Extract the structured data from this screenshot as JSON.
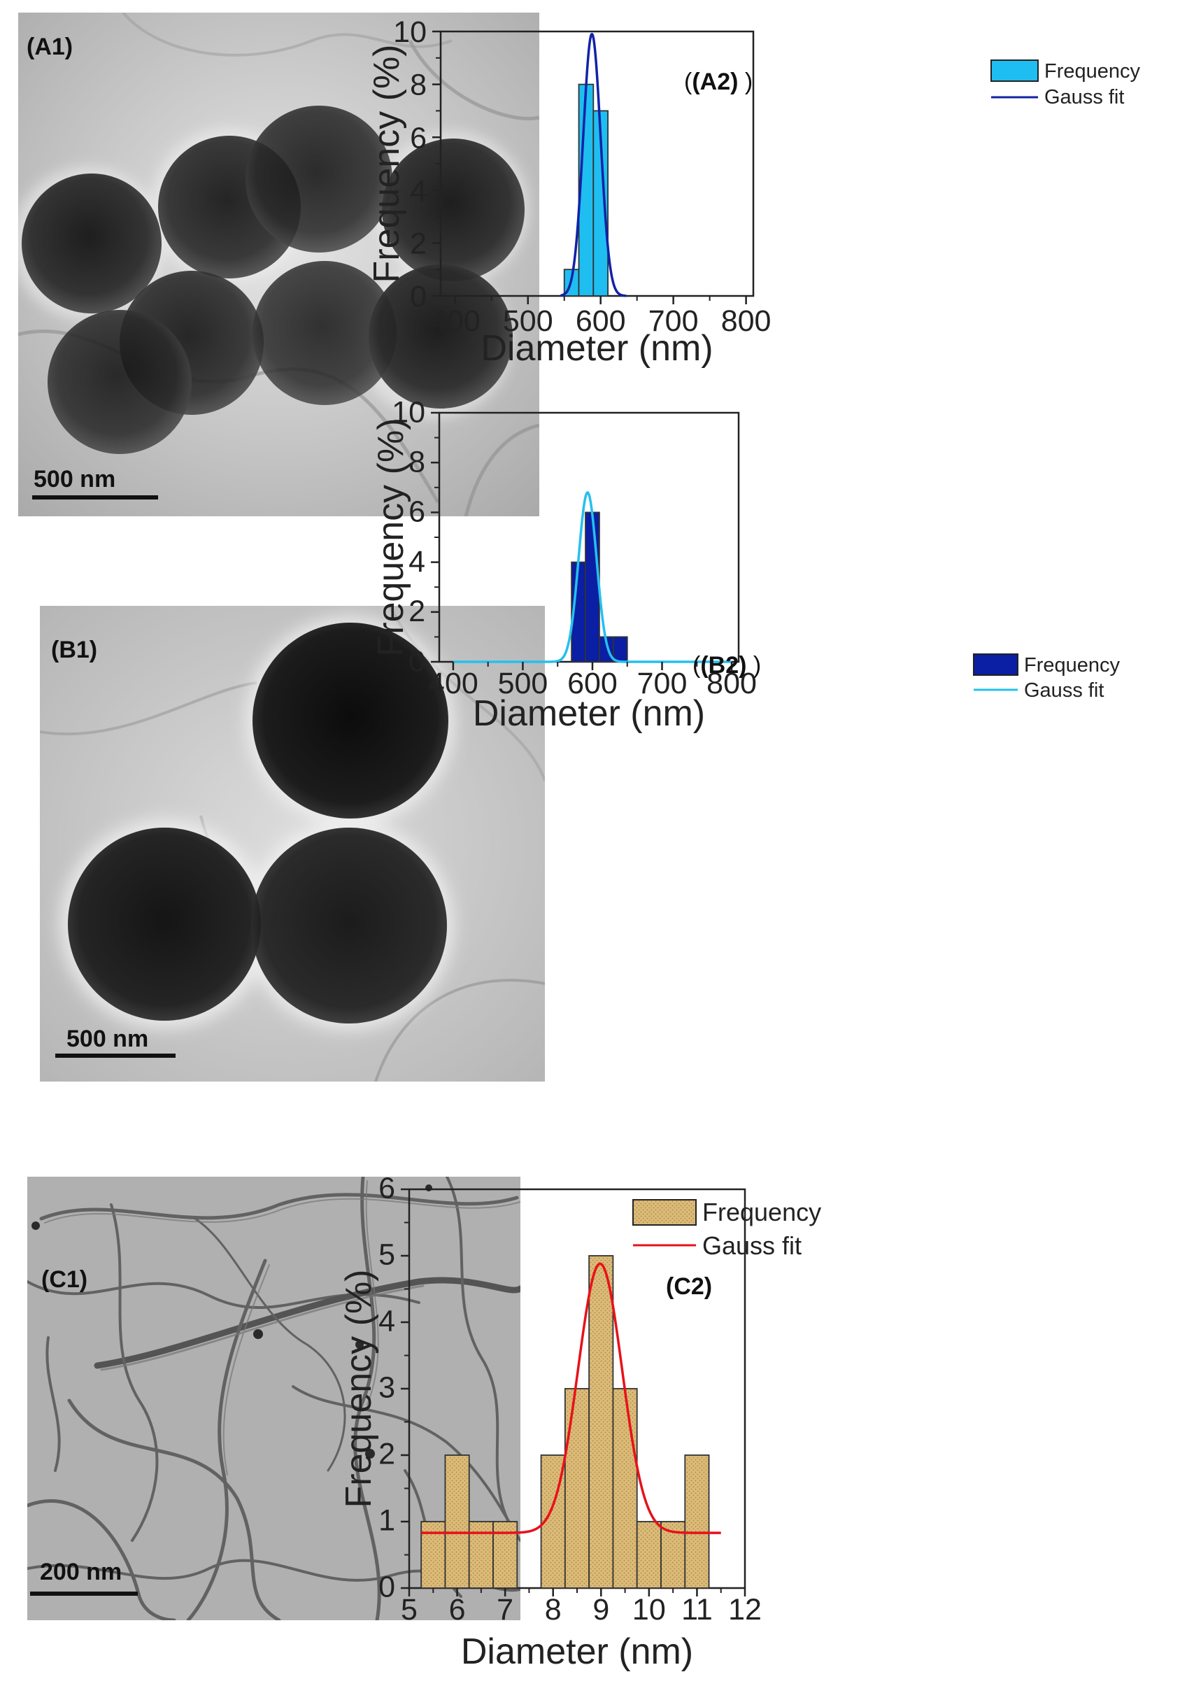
{
  "panels": [
    {
      "tem_label": "(A1)",
      "scale_bar": "500 nm",
      "chart_label": "(A2)",
      "legend_bar": "Frequency",
      "legend_fit": "Gauss fit",
      "colors": {
        "bar": "#1fbef0",
        "fit": "#1222a8"
      }
    },
    {
      "tem_label": "(B1)",
      "scale_bar": "500 nm",
      "chart_label": "(B2)",
      "legend_bar": "Frequency",
      "legend_fit": "Gauss fit",
      "colors": {
        "bar": "#0a1fa3",
        "fit": "#25c0ee"
      }
    },
    {
      "tem_label": "(C1)",
      "scale_bar": "200 nm",
      "chart_label": "(C2)",
      "legend_bar": "Frequency",
      "legend_fit": "Gauss fit",
      "colors": {
        "bar": "#dcbb78",
        "fit": "#e8111a"
      }
    }
  ],
  "chart_data": [
    {
      "type": "bar",
      "xlabel": "Diameter (nm)",
      "ylabel": "Frequency (%)",
      "xlim": [
        380,
        810
      ],
      "ylim": [
        0,
        10
      ],
      "xticks": [
        400,
        500,
        600,
        700,
        800
      ],
      "yticks": [
        0,
        2,
        4,
        6,
        8,
        10
      ],
      "bins": [
        {
          "x0": 550,
          "x1": 570,
          "value": 1
        },
        {
          "x0": 570,
          "x1": 590,
          "value": 8
        },
        {
          "x0": 590,
          "x1": 610,
          "value": 7
        }
      ],
      "series": [
        {
          "name": "Frequency",
          "kind": "histogram"
        },
        {
          "name": "Gauss fit",
          "kind": "line",
          "center": 588,
          "sigma": 12,
          "peak": 9.9,
          "baseline": 0,
          "x_range": [
            545,
            635
          ]
        }
      ],
      "legend": "top-right"
    },
    {
      "type": "bar",
      "xlabel": "Diameter (nm)",
      "ylabel": "Frequency (%)",
      "xlim": [
        380,
        810
      ],
      "ylim": [
        0,
        10
      ],
      "xticks": [
        400,
        500,
        600,
        700,
        800
      ],
      "yticks": [
        0,
        2,
        4,
        6,
        8,
        10
      ],
      "bins": [
        {
          "x0": 570,
          "x1": 590,
          "value": 4
        },
        {
          "x0": 590,
          "x1": 610,
          "value": 6
        },
        {
          "x0": 610,
          "x1": 630,
          "value": 1
        },
        {
          "x0": 630,
          "x1": 650,
          "value": 1
        }
      ],
      "series": [
        {
          "name": "Frequency",
          "kind": "histogram"
        },
        {
          "name": "Gauss fit",
          "kind": "line",
          "center": 593,
          "sigma": 13,
          "peak": 6.8,
          "baseline": 0,
          "x_range": [
            400,
            800
          ]
        }
      ],
      "legend": "top-right"
    },
    {
      "type": "bar",
      "xlabel": "Diameter (nm)",
      "ylabel": "Frequency (%)",
      "xlim": [
        5,
        12
      ],
      "ylim": [
        0,
        6
      ],
      "xticks": [
        5,
        6,
        7,
        8,
        9,
        10,
        11,
        12
      ],
      "yticks": [
        0,
        1,
        2,
        3,
        4,
        5,
        6
      ],
      "bins": [
        {
          "x0": 5.25,
          "x1": 5.75,
          "value": 1
        },
        {
          "x0": 5.75,
          "x1": 6.25,
          "value": 2
        },
        {
          "x0": 6.25,
          "x1": 6.75,
          "value": 1
        },
        {
          "x0": 6.75,
          "x1": 7.25,
          "value": 1
        },
        {
          "x0": 7.75,
          "x1": 8.25,
          "value": 2
        },
        {
          "x0": 8.25,
          "x1": 8.75,
          "value": 3
        },
        {
          "x0": 8.75,
          "x1": 9.25,
          "value": 5
        },
        {
          "x0": 9.25,
          "x1": 9.75,
          "value": 3
        },
        {
          "x0": 9.75,
          "x1": 10.25,
          "value": 1
        },
        {
          "x0": 10.25,
          "x1": 10.75,
          "value": 1
        },
        {
          "x0": 10.75,
          "x1": 11.25,
          "value": 2
        }
      ],
      "series": [
        {
          "name": "Frequency",
          "kind": "histogram"
        },
        {
          "name": "Gauss fit",
          "kind": "line",
          "center": 8.98,
          "sigma": 0.46,
          "peak": 4.05,
          "baseline": 0.83,
          "x_range": [
            5.25,
            11.5
          ]
        }
      ],
      "legend": "top-left"
    }
  ]
}
